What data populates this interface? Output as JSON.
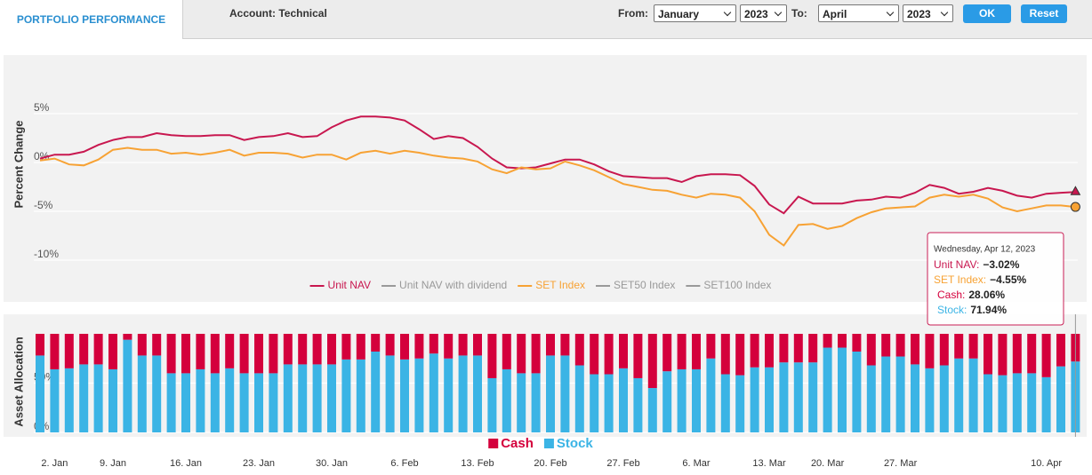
{
  "header": {
    "tab": "PORTFOLIO PERFORMANCE",
    "account": "Account: Technical",
    "from_label": "From:",
    "from_month": "January",
    "from_year": "2023",
    "to_label": "To:",
    "to_month": "April",
    "to_year": "2023",
    "ok": "OK",
    "reset": "Reset"
  },
  "chart_data": [
    {
      "type": "line",
      "y_label": "Percent Change",
      "ylim": [
        -12,
        10
      ],
      "yticks": [
        {
          "value": -10,
          "label": "-10%"
        },
        {
          "value": -5,
          "label": "-5%"
        },
        {
          "value": 0,
          "label": "0%"
        },
        {
          "value": 5,
          "label": "5%"
        }
      ],
      "grid": true,
      "legend": "bottom",
      "series": [
        {
          "name": "Unit NAV",
          "color": "#c8174f",
          "values": [
            0.4,
            0.8,
            0.8,
            1.1,
            1.8,
            2.3,
            2.6,
            2.6,
            3.0,
            2.8,
            2.7,
            2.7,
            2.8,
            2.8,
            2.3,
            2.6,
            2.7,
            3.0,
            2.6,
            2.7,
            3.6,
            4.3,
            4.7,
            4.7,
            4.6,
            4.3,
            3.4,
            2.4,
            2.7,
            2.5,
            1.6,
            0.4,
            -0.5,
            -0.6,
            -0.5,
            -0.1,
            0.3,
            0.3,
            -0.2,
            -0.9,
            -1.4,
            -1.5,
            -1.6,
            -1.6,
            -2.0,
            -1.4,
            -1.2,
            -1.2,
            -1.3,
            -2.4,
            -4.3,
            -5.2,
            -3.5,
            -4.2,
            -4.2,
            -4.2,
            -3.9,
            -3.8,
            -3.5,
            -3.6,
            -3.1,
            -2.3,
            -2.6,
            -3.2,
            -3.0,
            -2.6,
            -2.9,
            -3.4,
            -3.6,
            -3.2,
            -3.1,
            -3.02
          ]
        },
        {
          "name": "Unit NAV with dividend",
          "color": "#999999",
          "visible": false
        },
        {
          "name": "SET Index",
          "color": "#f7a234",
          "values": [
            0.2,
            0.4,
            -0.2,
            -0.3,
            0.3,
            1.3,
            1.5,
            1.3,
            1.3,
            0.9,
            1.0,
            0.8,
            1.0,
            1.3,
            0.7,
            1.0,
            1.0,
            0.9,
            0.5,
            0.8,
            0.8,
            0.3,
            1.0,
            1.2,
            0.9,
            1.2,
            1.0,
            0.7,
            0.5,
            0.4,
            0.1,
            -0.7,
            -1.1,
            -0.5,
            -0.7,
            -0.6,
            0.1,
            -0.3,
            -0.8,
            -1.5,
            -2.2,
            -2.5,
            -2.8,
            -2.9,
            -3.3,
            -3.6,
            -3.2,
            -3.3,
            -3.6,
            -5.0,
            -7.4,
            -8.5,
            -6.4,
            -6.3,
            -6.8,
            -6.5,
            -5.7,
            -5.1,
            -4.7,
            -4.6,
            -4.5,
            -3.6,
            -3.3,
            -3.5,
            -3.3,
            -3.7,
            -4.6,
            -5.0,
            -4.7,
            -4.4,
            -4.4,
            -4.55
          ]
        },
        {
          "name": "SET50 Index",
          "color": "#999999",
          "visible": false
        },
        {
          "name": "SET100 Index",
          "color": "#999999",
          "visible": false
        }
      ]
    },
    {
      "type": "bar",
      "stacked": true,
      "y_label": "Asset Allocation",
      "categories": [
        null,
        "2. Jan",
        null,
        null,
        null,
        "9. Jan",
        null,
        null,
        null,
        null,
        "16. Jan",
        null,
        null,
        null,
        null,
        "23. Jan",
        null,
        null,
        null,
        null,
        "30. Jan",
        null,
        null,
        null,
        null,
        "6. Feb",
        null,
        null,
        null,
        null,
        "13. Feb",
        null,
        null,
        null,
        null,
        "20. Feb",
        null,
        null,
        null,
        null,
        "27. Feb",
        null,
        null,
        null,
        null,
        "6. Mar",
        null,
        null,
        null,
        null,
        "13. Mar",
        null,
        null,
        null,
        "20. Mar",
        null,
        null,
        null,
        null,
        "27. Mar",
        null,
        null,
        null,
        null,
        null,
        null,
        null,
        null,
        null,
        "10. Apr",
        null,
        null
      ],
      "ylim": [
        0,
        100
      ],
      "yticks": [
        {
          "value": 0,
          "label": "0%"
        },
        {
          "value": 50,
          "label": "50%"
        }
      ],
      "grid": true,
      "legend": "bottom",
      "series": [
        {
          "name": "Cash",
          "color": "#d4003c",
          "values": [
            22,
            36,
            35,
            31,
            31,
            36,
            6,
            22,
            22,
            40,
            40,
            36,
            40,
            35,
            40,
            40,
            40,
            31,
            31,
            31,
            31,
            26,
            26,
            18,
            22,
            26,
            25,
            20,
            25,
            22,
            22,
            45,
            36,
            40,
            40,
            22,
            22,
            32,
            41,
            41,
            35,
            45,
            55,
            38,
            36,
            36,
            25,
            41,
            42,
            34,
            34,
            29,
            29,
            29,
            14,
            14,
            18,
            32,
            23,
            23,
            31,
            35,
            32,
            25,
            25,
            41,
            42,
            40,
            40,
            44,
            33,
            28.06
          ]
        },
        {
          "name": "Stock",
          "color": "#3bb4e5",
          "values": [
            78,
            64,
            65,
            69,
            69,
            64,
            94,
            78,
            78,
            60,
            60,
            64,
            60,
            65,
            60,
            60,
            60,
            69,
            69,
            69,
            69,
            74,
            74,
            82,
            78,
            74,
            75,
            80,
            75,
            78,
            78,
            55,
            64,
            60,
            60,
            78,
            78,
            68,
            59,
            59,
            65,
            55,
            45,
            62,
            64,
            64,
            75,
            59,
            58,
            66,
            66,
            71,
            71,
            71,
            86,
            86,
            82,
            68,
            77,
            77,
            69,
            65,
            68,
            75,
            75,
            59,
            58,
            60,
            60,
            56,
            67,
            71.94
          ]
        }
      ]
    }
  ],
  "tooltip": {
    "date": "Wednesday, Apr 12, 2023",
    "border": "#c8174f",
    "items": [
      {
        "label": "Unit NAV:",
        "value": "−3.02%",
        "color": "#c8174f"
      },
      {
        "label": "SET Index:",
        "value": "−4.55%",
        "color": "#f7a234"
      },
      {
        "label": "Cash:",
        "value": "28.06%",
        "color": "#d4003c"
      },
      {
        "label": "Stock:",
        "value": "71.94%",
        "color": "#3bb4e5"
      }
    ]
  }
}
